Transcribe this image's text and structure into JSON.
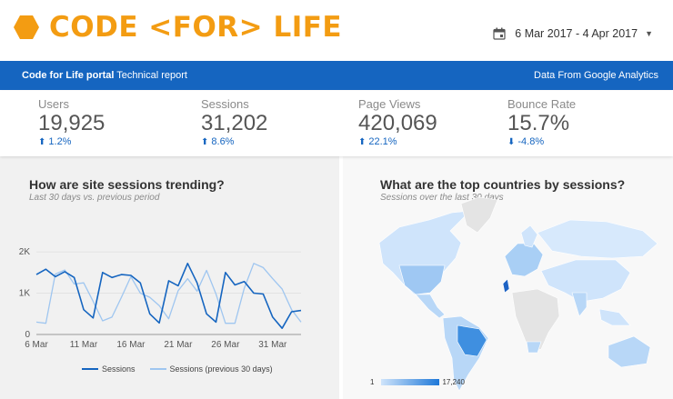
{
  "header": {
    "logo_text": "CODE <FOR> LIFE",
    "date_range": "6 Mar 2017 - 4 Apr 2017"
  },
  "banner": {
    "portal_bold": "Code for Life portal",
    "portal_rest": " Technical report",
    "source": "Data From Google Analytics"
  },
  "kpis": [
    {
      "label": "Users",
      "value": "19,925",
      "delta": "1.2%",
      "direction": "up"
    },
    {
      "label": "Sessions",
      "value": "31,202",
      "delta": "8.6%",
      "direction": "up"
    },
    {
      "label": "Page Views",
      "value": "420,069",
      "delta": "22.1%",
      "direction": "up"
    },
    {
      "label": "Bounce Rate",
      "value": "15.7%",
      "delta": "-4.8%",
      "direction": "down"
    }
  ],
  "trend_panel": {
    "title": "How are site sessions trending?",
    "subtitle": "Last 30 days vs. previous period"
  },
  "map_panel": {
    "title": "What are the top countries by sessions?",
    "subtitle": "Sessions over the last 30 days",
    "scale_min": "1",
    "scale_max": "17,240"
  },
  "chart_data": {
    "type": "line",
    "x_tick_labels": [
      "6 Mar",
      "11 Mar",
      "16 Mar",
      "21 Mar",
      "26 Mar",
      "31 Mar"
    ],
    "y_tick_labels": [
      "0",
      "1K",
      "2K"
    ],
    "ylim": [
      0,
      2200
    ],
    "x_day_offsets_of_ticks": [
      0,
      5,
      10,
      15,
      20,
      25
    ],
    "series": [
      {
        "name": "Sessions",
        "color": "#1565c0",
        "values": [
          1450,
          1580,
          1400,
          1520,
          1380,
          600,
          400,
          1500,
          1380,
          1450,
          1430,
          1250,
          500,
          280,
          1300,
          1180,
          1720,
          1250,
          500,
          300,
          1500,
          1200,
          1280,
          1000,
          980,
          420,
          150,
          550,
          580
        ]
      },
      {
        "name": "Sessions (previous 30 days)",
        "color": "#9fc6f0",
        "values": [
          300,
          270,
          1460,
          1560,
          1220,
          1250,
          800,
          330,
          420,
          900,
          1400,
          1000,
          900,
          700,
          380,
          1060,
          1350,
          1050,
          1550,
          980,
          270,
          270,
          1120,
          1720,
          1620,
          1350,
          1100,
          600,
          300
        ]
      }
    ]
  },
  "colors": {
    "banner": "#1565c0",
    "logo": "#f39c12",
    "positive": "#1565c0"
  }
}
